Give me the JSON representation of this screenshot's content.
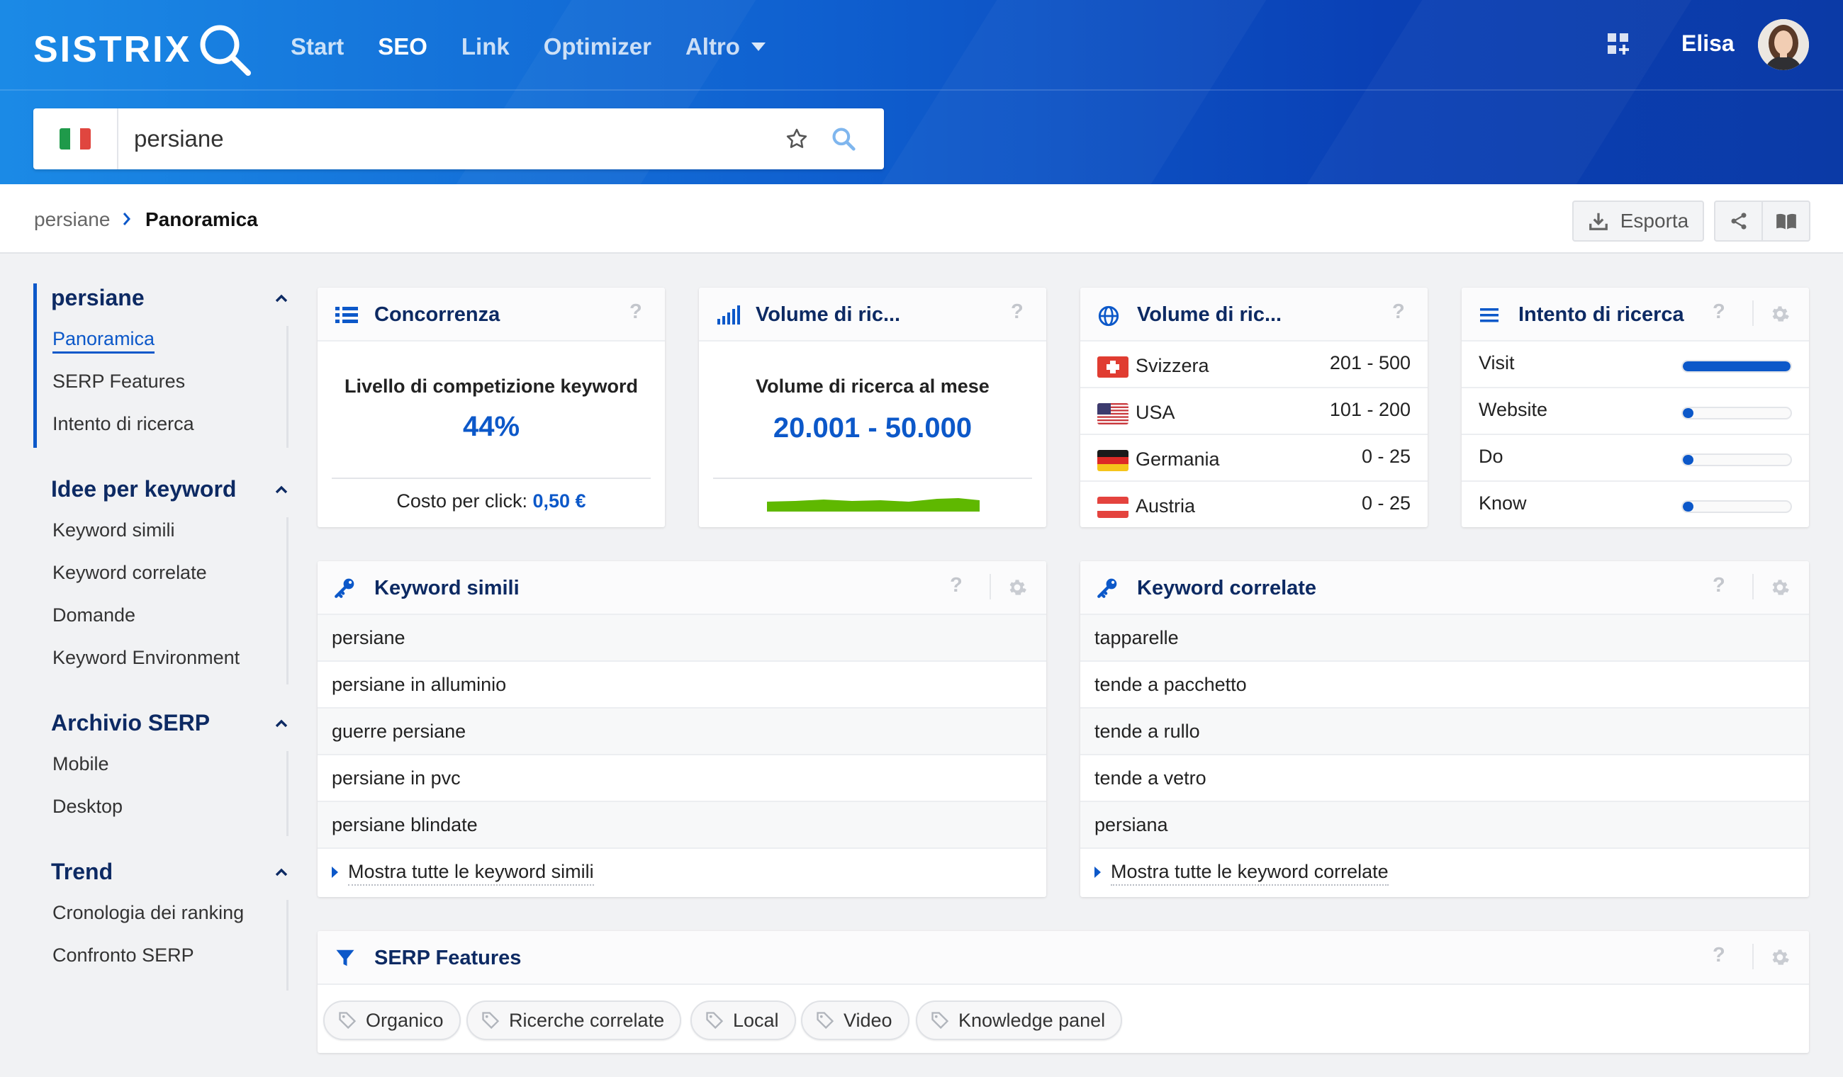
{
  "header": {
    "logo_text": "SISTRIX",
    "nav": [
      {
        "label": "Start"
      },
      {
        "label": "SEO"
      },
      {
        "label": "Link"
      },
      {
        "label": "Optimizer"
      },
      {
        "label": "Altro"
      }
    ],
    "active_nav": "SEO",
    "user_name": "Elisa",
    "search": {
      "value": "persiane",
      "country_flag": "Italy"
    }
  },
  "breadcrumb": {
    "root": "persiane",
    "current": "Panoramica"
  },
  "toolbar": {
    "export_label": "Esporta",
    "share_icon": "share-icon",
    "book_icon": "book-icon"
  },
  "sidebar": {
    "sections": [
      {
        "title": "persiane",
        "items": [
          "Panoramica",
          "SERP Features",
          "Intento di ricerca"
        ],
        "active_item": "Panoramica"
      },
      {
        "title": "Idee per keyword",
        "items": [
          "Keyword simili",
          "Keyword correlate",
          "Domande",
          "Keyword Environment"
        ]
      },
      {
        "title": "Archivio SERP",
        "items": [
          "Mobile",
          "Desktop"
        ]
      },
      {
        "title": "Trend",
        "items": [
          "Cronologia dei ranking",
          "Confronto SERP"
        ]
      }
    ]
  },
  "cards": {
    "concorrenza": {
      "title": "Concorrenza",
      "help": "?",
      "label": "Livello di competizione keyword",
      "value": "44%",
      "cpc_label": "Costo per click:",
      "cpc_value": "0,50 €"
    },
    "volume": {
      "title": "Volume di ric...",
      "help": "?",
      "label": "Volume di ricerca al mese",
      "value": "20.001 - 50.000",
      "trend_color": "#5fb800"
    },
    "volume_countries": {
      "title": "Volume di ric...",
      "help": "?",
      "rows": [
        {
          "country": "Svizzera",
          "range": "201 - 500"
        },
        {
          "country": "USA",
          "range": "101 - 200"
        },
        {
          "country": "Germania",
          "range": "0 - 25"
        },
        {
          "country": "Austria",
          "range": "0 - 25"
        }
      ]
    },
    "intento": {
      "title": "Intento di ricerca",
      "help": "?",
      "rows": [
        {
          "label": "Visit",
          "share": 1.0
        },
        {
          "label": "Website",
          "share": 0.1
        },
        {
          "label": "Do",
          "share": 0.1
        },
        {
          "label": "Know",
          "share": 0.1
        }
      ]
    },
    "keyword_simili": {
      "title": "Keyword simili",
      "help": "?",
      "items": [
        "persiane",
        "persiane in alluminio",
        "guerre persiane",
        "persiane in pvc",
        "persiane blindate"
      ],
      "more": "Mostra tutte le keyword simili"
    },
    "keyword_correlate": {
      "title": "Keyword correlate",
      "help": "?",
      "items": [
        "tapparelle",
        "tende a pacchetto",
        "tende a rullo",
        "tende a vetro",
        "persiana"
      ],
      "more": "Mostra tutte le keyword correlate"
    },
    "serp_features": {
      "title": "SERP Features",
      "help": "?",
      "chips": [
        "Organico",
        "Ricerche correlate",
        "Local",
        "Video",
        "Knowledge panel"
      ]
    }
  },
  "colors": {
    "accent": "#0c58c9",
    "title": "#0d2a63",
    "trend": "#5fb800"
  }
}
